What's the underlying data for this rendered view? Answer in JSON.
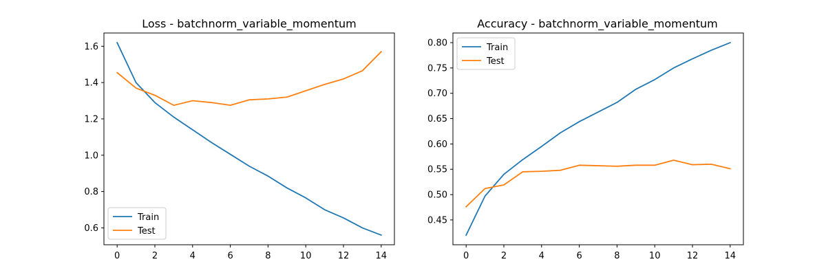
{
  "chart_data": [
    {
      "type": "line",
      "title": "Loss - batchnorm_variable_momentum",
      "xlabel": "",
      "ylabel": "",
      "x": [
        0,
        1,
        2,
        3,
        4,
        5,
        6,
        7,
        8,
        9,
        10,
        11,
        12,
        13,
        14
      ],
      "series": [
        {
          "name": "Train",
          "color": "#1f77b4",
          "values": [
            1.62,
            1.4,
            1.29,
            1.21,
            1.14,
            1.07,
            1.005,
            0.94,
            0.885,
            0.82,
            0.765,
            0.7,
            0.655,
            0.6,
            0.56
          ]
        },
        {
          "name": "Test",
          "color": "#ff7f0e",
          "values": [
            1.455,
            1.37,
            1.33,
            1.275,
            1.3,
            1.29,
            1.275,
            1.305,
            1.31,
            1.32,
            1.355,
            1.39,
            1.42,
            1.465,
            1.57
          ]
        }
      ],
      "xlim": [
        -0.7,
        14.7
      ],
      "ylim": [
        0.507,
        1.673
      ],
      "xticks": [
        0,
        2,
        4,
        6,
        8,
        10,
        12,
        14
      ],
      "xtick_labels": [
        "0",
        "2",
        "4",
        "6",
        "8",
        "10",
        "12",
        "14"
      ],
      "yticks": [
        0.6,
        0.8,
        1.0,
        1.2,
        1.4,
        1.6
      ],
      "ytick_labels": [
        "0.6",
        "0.8",
        "1.0",
        "1.2",
        "1.4",
        "1.6"
      ],
      "legend_position": "lower-left",
      "grid": false
    },
    {
      "type": "line",
      "title": "Accuracy - batchnorm_variable_momentum",
      "xlabel": "",
      "ylabel": "",
      "x": [
        0,
        1,
        2,
        3,
        4,
        5,
        6,
        7,
        8,
        9,
        10,
        11,
        12,
        13,
        14
      ],
      "series": [
        {
          "name": "Train",
          "color": "#1f77b4",
          "values": [
            0.42,
            0.497,
            0.54,
            0.569,
            0.595,
            0.622,
            0.644,
            0.663,
            0.682,
            0.708,
            0.727,
            0.75,
            0.768,
            0.785,
            0.8
          ]
        },
        {
          "name": "Test",
          "color": "#ff7f0e",
          "values": [
            0.476,
            0.512,
            0.519,
            0.545,
            0.546,
            0.548,
            0.558,
            0.557,
            0.556,
            0.558,
            0.558,
            0.568,
            0.559,
            0.56,
            0.551
          ]
        }
      ],
      "xlim": [
        -0.7,
        14.7
      ],
      "ylim": [
        0.401,
        0.819
      ],
      "xticks": [
        0,
        2,
        4,
        6,
        8,
        10,
        12,
        14
      ],
      "xtick_labels": [
        "0",
        "2",
        "4",
        "6",
        "8",
        "10",
        "12",
        "14"
      ],
      "yticks": [
        0.45,
        0.5,
        0.55,
        0.6,
        0.65,
        0.7,
        0.75,
        0.8
      ],
      "ytick_labels": [
        "0.45",
        "0.50",
        "0.55",
        "0.60",
        "0.65",
        "0.70",
        "0.75",
        "0.80"
      ],
      "legend_position": "upper-left",
      "grid": false
    }
  ]
}
